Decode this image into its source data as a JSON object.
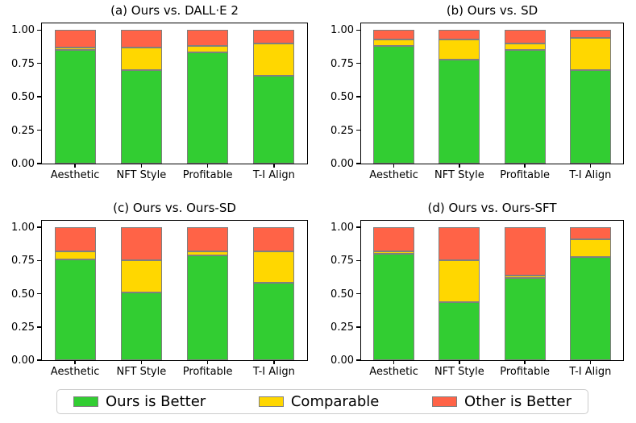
{
  "colors": {
    "ours_better": "#32cd32",
    "comparable": "#ffd700",
    "other_better": "#ff6347",
    "bar_edge": "#7f7f7f",
    "axis": "#000000",
    "legend_border": "#cccccc"
  },
  "legend": {
    "items": [
      {
        "label": "Ours is Better",
        "color_key": "ours_better"
      },
      {
        "label": "Comparable",
        "color_key": "comparable"
      },
      {
        "label": "Other is Better",
        "color_key": "other_better"
      }
    ]
  },
  "chart_data": [
    {
      "type": "bar",
      "stacked": true,
      "title": "(a) Ours vs. DALL·E 2",
      "categories": [
        "Aesthetic",
        "NFT Style",
        "Profitable",
        "T-I Align"
      ],
      "yticks": [
        "0.00",
        "0.25",
        "0.50",
        "0.75",
        "1.00"
      ],
      "ylim": [
        0,
        1.05
      ],
      "grid": false,
      "series": [
        {
          "name": "Ours is Better",
          "color_key": "ours_better",
          "values": [
            0.85,
            0.7,
            0.83,
            0.66
          ]
        },
        {
          "name": "Comparable",
          "color_key": "comparable",
          "values": [
            0.02,
            0.17,
            0.05,
            0.24
          ]
        },
        {
          "name": "Other is Better",
          "color_key": "other_better",
          "values": [
            0.13,
            0.13,
            0.12,
            0.1
          ]
        }
      ]
    },
    {
      "type": "bar",
      "stacked": true,
      "title": "(b) Ours vs. SD",
      "categories": [
        "Aesthetic",
        "NFT Style",
        "Profitable",
        "T-I Align"
      ],
      "yticks": [
        "0.00",
        "0.25",
        "0.50",
        "0.75",
        "1.00"
      ],
      "ylim": [
        0,
        1.05
      ],
      "grid": false,
      "series": [
        {
          "name": "Ours is Better",
          "color_key": "ours_better",
          "values": [
            0.88,
            0.78,
            0.85,
            0.7
          ]
        },
        {
          "name": "Comparable",
          "color_key": "comparable",
          "values": [
            0.05,
            0.15,
            0.05,
            0.24
          ]
        },
        {
          "name": "Other is Better",
          "color_key": "other_better",
          "values": [
            0.07,
            0.07,
            0.1,
            0.06
          ]
        }
      ]
    },
    {
      "type": "bar",
      "stacked": true,
      "title": "(c) Ours vs. Ours-SD",
      "categories": [
        "Aesthetic",
        "NFT Style",
        "Profitable",
        "T-I Align"
      ],
      "yticks": [
        "0.00",
        "0.25",
        "0.50",
        "0.75",
        "1.00"
      ],
      "ylim": [
        0,
        1.05
      ],
      "grid": false,
      "series": [
        {
          "name": "Ours is Better",
          "color_key": "ours_better",
          "values": [
            0.76,
            0.51,
            0.79,
            0.58
          ]
        },
        {
          "name": "Comparable",
          "color_key": "comparable",
          "values": [
            0.06,
            0.24,
            0.03,
            0.24
          ]
        },
        {
          "name": "Other is Better",
          "color_key": "other_better",
          "values": [
            0.18,
            0.25,
            0.18,
            0.18
          ]
        }
      ]
    },
    {
      "type": "bar",
      "stacked": true,
      "title": "(d) Ours vs. Ours-SFT",
      "categories": [
        "Aesthetic",
        "NFT Style",
        "Profitable",
        "T-I Align"
      ],
      "yticks": [
        "0.00",
        "0.25",
        "0.50",
        "0.75",
        "1.00"
      ],
      "ylim": [
        0,
        1.05
      ],
      "grid": false,
      "series": [
        {
          "name": "Ours is Better",
          "color_key": "ours_better",
          "values": [
            0.8,
            0.44,
            0.62,
            0.78
          ]
        },
        {
          "name": "Comparable",
          "color_key": "comparable",
          "values": [
            0.02,
            0.31,
            0.02,
            0.13
          ]
        },
        {
          "name": "Other is Better",
          "color_key": "other_better",
          "values": [
            0.18,
            0.25,
            0.36,
            0.09
          ]
        }
      ]
    }
  ]
}
